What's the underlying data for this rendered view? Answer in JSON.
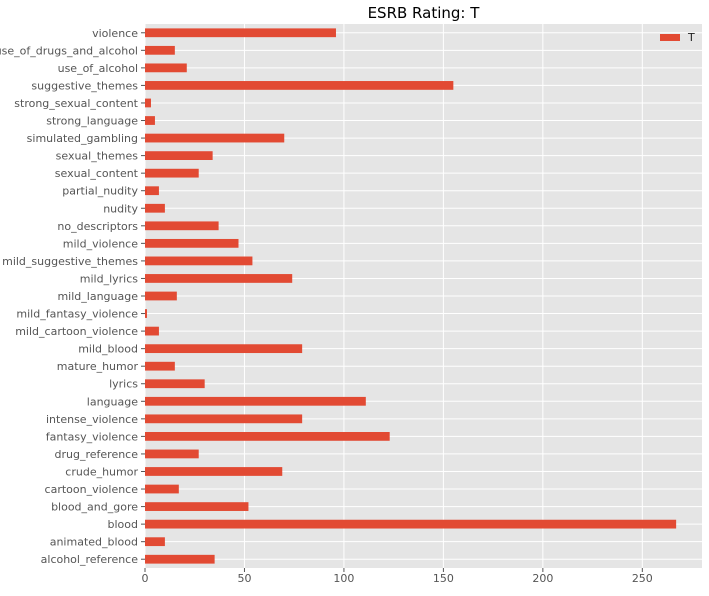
{
  "chart_data": {
    "type": "bar",
    "orientation": "horizontal",
    "title": "ESRB Rating: T",
    "xlabel": "",
    "ylabel": "",
    "xlim": [
      0,
      280
    ],
    "xticks": [
      0,
      50,
      100,
      150,
      200,
      250
    ],
    "grid": true,
    "legend_position": "top-right",
    "colors": {
      "bar": "#E24A33",
      "plot_bg": "#E5E5E5",
      "grid": "#FFFFFF",
      "tick_label": "#555555",
      "title": "#000000"
    },
    "categories": [
      "violence",
      "use_of_drugs_and_alcohol",
      "use_of_alcohol",
      "suggestive_themes",
      "strong_sexual_content",
      "strong_language",
      "simulated_gambling",
      "sexual_themes",
      "sexual_content",
      "partial_nudity",
      "nudity",
      "no_descriptors",
      "mild_violence",
      "mild_suggestive_themes",
      "mild_lyrics",
      "mild_language",
      "mild_fantasy_violence",
      "mild_cartoon_violence",
      "mild_blood",
      "mature_humor",
      "lyrics",
      "language",
      "intense_violence",
      "fantasy_violence",
      "drug_reference",
      "crude_humor",
      "cartoon_violence",
      "blood_and_gore",
      "blood",
      "animated_blood",
      "alcohol_reference"
    ],
    "series": [
      {
        "name": "T",
        "values": [
          96,
          15,
          21,
          155,
          3,
          5,
          70,
          34,
          27,
          7,
          10,
          37,
          47,
          54,
          74,
          16,
          1,
          7,
          79,
          15,
          30,
          111,
          79,
          123,
          27,
          69,
          17,
          52,
          267,
          10,
          35
        ]
      }
    ]
  }
}
